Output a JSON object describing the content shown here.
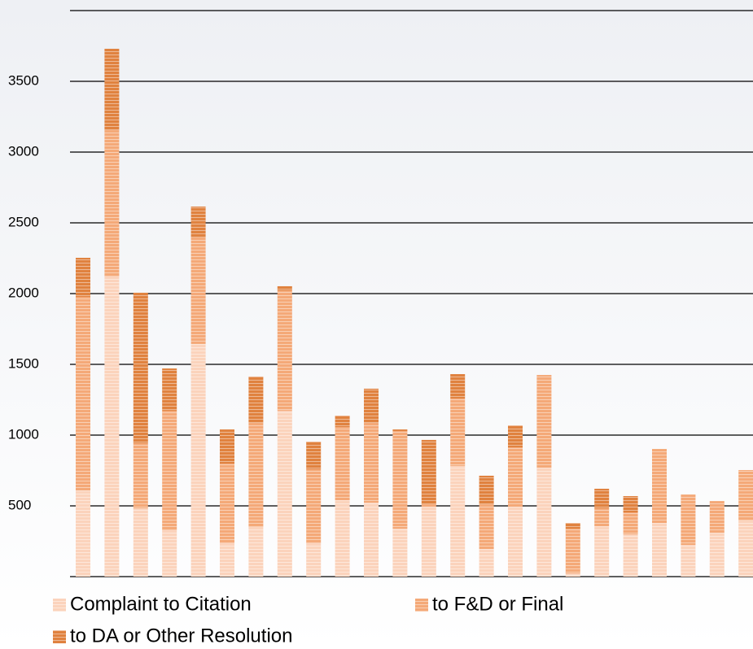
{
  "chart_data": {
    "type": "bar",
    "stacked": true,
    "categories": [
      null,
      null,
      null,
      null,
      null,
      null,
      null,
      null,
      null,
      null,
      null,
      null,
      null,
      null,
      null,
      null,
      null,
      null,
      null,
      null,
      null,
      null,
      null,
      null
    ],
    "series": [
      {
        "name": "Complaint to Citation",
        "color": "#fbd3bc",
        "values": [
          609,
          2120,
          483,
          328,
          1644,
          236,
          351,
          1172,
          236,
          540,
          523,
          339,
          494,
          782,
          195,
          494,
          770,
          23,
          356,
          299,
          379,
          224,
          310,
          397
        ]
      },
      {
        "name": "to F&D or Final",
        "color": "#f4a978",
        "values": [
          1368,
          1035,
          460,
          844,
          753,
          563,
          735,
          850,
          523,
          517,
          563,
          690,
          17,
          477,
          316,
          420,
          655,
          316,
          127,
          155,
          523,
          356,
          224,
          356
        ]
      },
      {
        "name": "to DA or Other Resolution",
        "color": "#e0823f",
        "values": [
          276,
          575,
          1063,
          299,
          218,
          241,
          328,
          30,
          195,
          81,
          242,
          11,
          455,
          172,
          202,
          155,
          0,
          40,
          138,
          115,
          0,
          0,
          0,
          0
        ]
      }
    ],
    "ylim": [
      0,
      4000
    ],
    "yticks": [
      500,
      1000,
      1500,
      2000,
      2500,
      3000,
      3500
    ],
    "grid": true
  }
}
